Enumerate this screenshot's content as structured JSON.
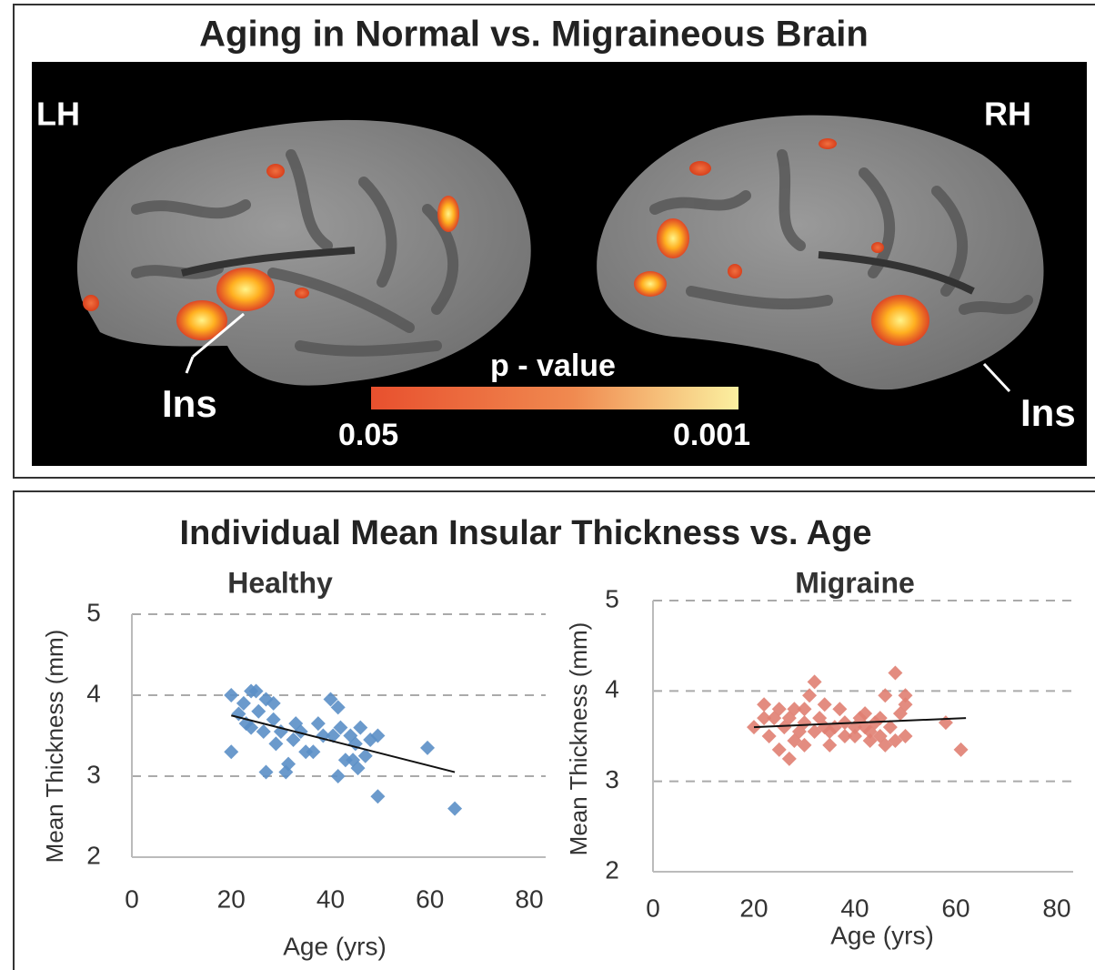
{
  "brain_panel": {
    "title": "Aging in Normal vs. Migraineous Brain",
    "left_label": "LH",
    "right_label": "RH",
    "left_region": "Ins",
    "right_region": "Ins",
    "colorbar": {
      "title": "p - value",
      "min_label": 0.05,
      "max_label": 0.001
    }
  },
  "section_title": "Individual Mean Insular Thickness vs. Age",
  "chart_data": [
    {
      "type": "scatter",
      "title": "Healthy",
      "xlabel": "Age (yrs)",
      "ylabel": "Mean Thickness (mm)",
      "xlim": [
        0,
        80
      ],
      "ylim": [
        2,
        5
      ],
      "xticks": [
        0,
        20,
        40,
        60,
        80
      ],
      "yticks": [
        2,
        3,
        4,
        5
      ],
      "grid": true,
      "color": "#5b8fc7",
      "x": [
        20,
        24,
        25,
        21.5,
        23,
        24,
        26.5,
        20,
        27,
        28.5,
        29,
        27,
        31,
        31.5,
        33,
        32.5,
        35,
        37.5,
        40,
        40.5,
        41.5,
        42,
        43,
        41.5,
        44,
        45,
        46,
        47,
        48,
        49.5,
        49.5,
        59.5,
        65,
        30,
        28.5,
        25.5,
        36.5,
        38.5,
        44.5,
        45.5,
        22.5,
        34
      ],
      "y": [
        4.0,
        4.05,
        4.05,
        3.77,
        3.65,
        3.6,
        3.55,
        3.3,
        3.95,
        3.9,
        3.4,
        3.05,
        3.05,
        3.15,
        3.65,
        3.45,
        3.3,
        3.65,
        3.95,
        3.5,
        3.85,
        3.6,
        3.2,
        3.0,
        3.5,
        3.4,
        3.6,
        3.25,
        3.45,
        3.5,
        2.75,
        3.35,
        2.6,
        3.55,
        3.7,
        3.8,
        3.3,
        3.5,
        3.2,
        3.1,
        3.9,
        3.55
      ],
      "trend": {
        "color": "#111111",
        "x": [
          20,
          65
        ],
        "y": [
          3.75,
          3.05
        ]
      }
    },
    {
      "type": "scatter",
      "title": "Migraine",
      "xlabel": "Age (yrs)",
      "ylabel": "Mean Thickness (mm)",
      "xlim": [
        0,
        80
      ],
      "ylim": [
        2,
        5
      ],
      "xticks": [
        0,
        20,
        40,
        60,
        80
      ],
      "yticks": [
        2,
        3,
        4,
        5
      ],
      "grid": true,
      "color": "#e07f72",
      "x": [
        20,
        22,
        23,
        24,
        25,
        25,
        26,
        27,
        27,
        28,
        29,
        30,
        30,
        31,
        32,
        32,
        33,
        34,
        35,
        35,
        36,
        37,
        38,
        40,
        40,
        41,
        42,
        43,
        43,
        44,
        45,
        45,
        46,
        46,
        47,
        48,
        49,
        50,
        50,
        50,
        58,
        61,
        22,
        28,
        30,
        34,
        38,
        42,
        48
      ],
      "y": [
        3.6,
        3.85,
        3.5,
        3.7,
        3.35,
        3.8,
        3.6,
        3.25,
        3.7,
        3.45,
        3.55,
        3.8,
        3.65,
        3.95,
        4.1,
        3.55,
        3.7,
        3.85,
        3.55,
        3.4,
        3.6,
        3.8,
        3.65,
        3.6,
        3.5,
        3.7,
        3.75,
        3.55,
        3.45,
        3.65,
        3.7,
        3.5,
        3.95,
        3.4,
        3.6,
        4.2,
        3.75,
        3.85,
        3.5,
        3.95,
        3.65,
        3.35,
        3.7,
        3.8,
        3.4,
        3.6,
        3.5,
        3.6,
        3.45
      ],
      "trend": {
        "color": "#111111",
        "x": [
          20,
          62
        ],
        "y": [
          3.6,
          3.7
        ]
      }
    }
  ]
}
